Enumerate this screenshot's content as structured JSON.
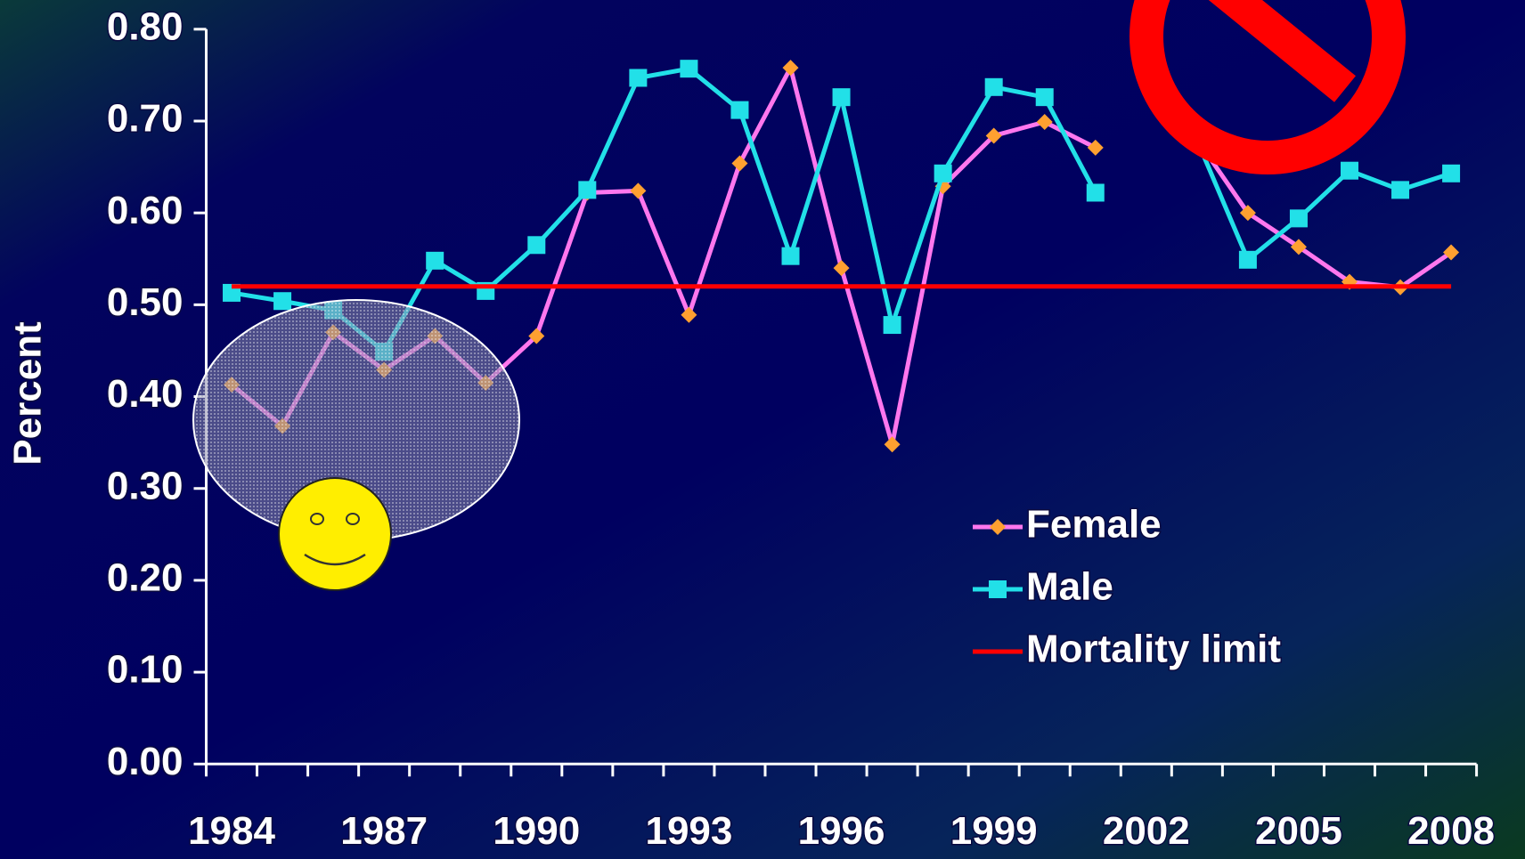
{
  "chart_data": {
    "type": "line",
    "y_label": "Percent",
    "categories": [
      "1984",
      null,
      null,
      "1987",
      null,
      null,
      "1990",
      null,
      null,
      "1993",
      null,
      null,
      "1996",
      null,
      null,
      "1999",
      null,
      null,
      "2002",
      null,
      null,
      "2005",
      null,
      null,
      "2008"
    ],
    "series": [
      {
        "name": "Female",
        "color": "#ff77ee",
        "marker": "diamond",
        "marker_color": "#ffa030",
        "values": [
          0.413,
          0.368,
          0.47,
          0.429,
          0.466,
          0.415,
          0.466,
          0.622,
          0.624,
          0.489,
          0.654,
          0.758,
          0.54,
          0.348,
          0.629,
          0.684,
          0.699,
          0.671,
          null,
          0.68,
          0.6,
          0.563,
          0.525,
          0.519,
          0.557
        ]
      },
      {
        "name": "Male",
        "color": "#22e0e8",
        "marker": "square",
        "marker_color": "#22e0e8",
        "values": [
          0.513,
          0.504,
          0.494,
          0.449,
          0.548,
          0.515,
          0.565,
          0.625,
          0.747,
          0.757,
          0.712,
          0.553,
          0.726,
          0.478,
          0.643,
          0.737,
          0.726,
          0.622,
          null,
          0.679,
          0.549,
          0.594,
          0.646,
          0.625,
          0.643
        ]
      },
      {
        "name": "Mortality limit",
        "color": "#ff0000",
        "marker": "none",
        "values": [
          0.52,
          0.52,
          0.52,
          0.52,
          0.52,
          0.52,
          0.52,
          0.52,
          0.52,
          0.52,
          0.52,
          0.52,
          0.52,
          0.52,
          0.52,
          0.52,
          0.52,
          0.52,
          0.52,
          0.52,
          0.52,
          0.52,
          0.52,
          0.52,
          0.52
        ]
      }
    ],
    "ylim": [
      0,
      0.8
    ],
    "yticks": [
      {
        "value": 0,
        "label": "0.00"
      },
      {
        "value": 0.1,
        "label": "0.10"
      },
      {
        "value": 0.2,
        "label": "0.20"
      },
      {
        "value": 0.3,
        "label": "0.30"
      },
      {
        "value": 0.4,
        "label": "0.40"
      },
      {
        "value": 0.5,
        "label": "0.50"
      },
      {
        "value": 0.6,
        "label": "0.60"
      },
      {
        "value": 0.7,
        "label": "0.70"
      },
      {
        "value": 0.8,
        "label": "0.80"
      }
    ],
    "grid": false,
    "legend": "lower-right"
  }
}
